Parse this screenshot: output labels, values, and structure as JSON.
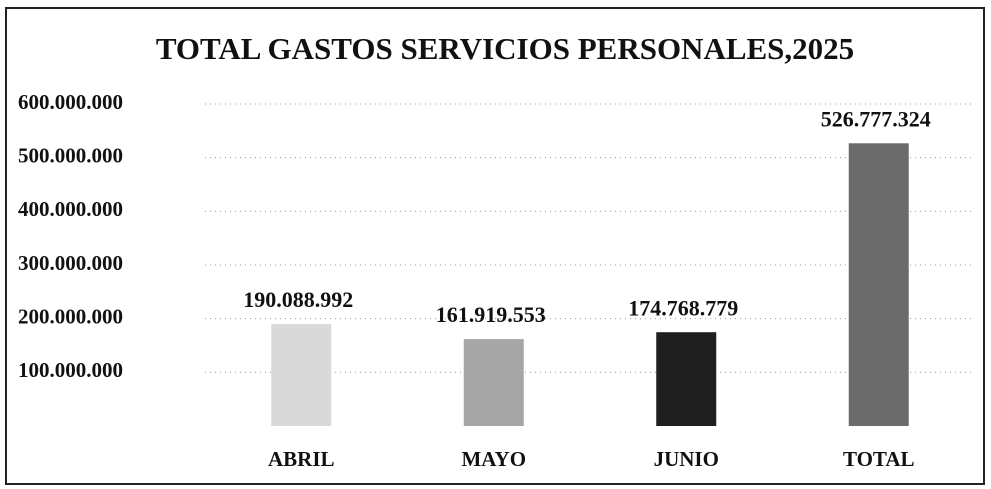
{
  "chart_data": {
    "type": "bar",
    "title": "TOTAL GASTOS SERVICIOS PERSONALES,2025",
    "categories": [
      "ABRIL",
      "MAYO",
      "JUNIO",
      "TOTAL"
    ],
    "values": [
      190088992,
      161919553,
      174768779,
      526777324
    ],
    "value_labels": [
      "190.088.992",
      "161.919.553",
      "174.768.779",
      "526.777.324"
    ],
    "colors": [
      "#d9d9d9",
      "#a6a6a6",
      "#1f1f1f",
      "#6b6b6b"
    ],
    "ylim": [
      0,
      600000000
    ],
    "yticks": [
      {
        "value": 100000000,
        "label": "100.000.000"
      },
      {
        "value": 200000000,
        "label": "200.000.000"
      },
      {
        "value": 300000000,
        "label": "300.000.000"
      },
      {
        "value": 400000000,
        "label": "400.000.000"
      },
      {
        "value": 500000000,
        "label": "500.000.000"
      },
      {
        "value": 600000000,
        "label": "600.000.000"
      }
    ],
    "grid": true
  }
}
